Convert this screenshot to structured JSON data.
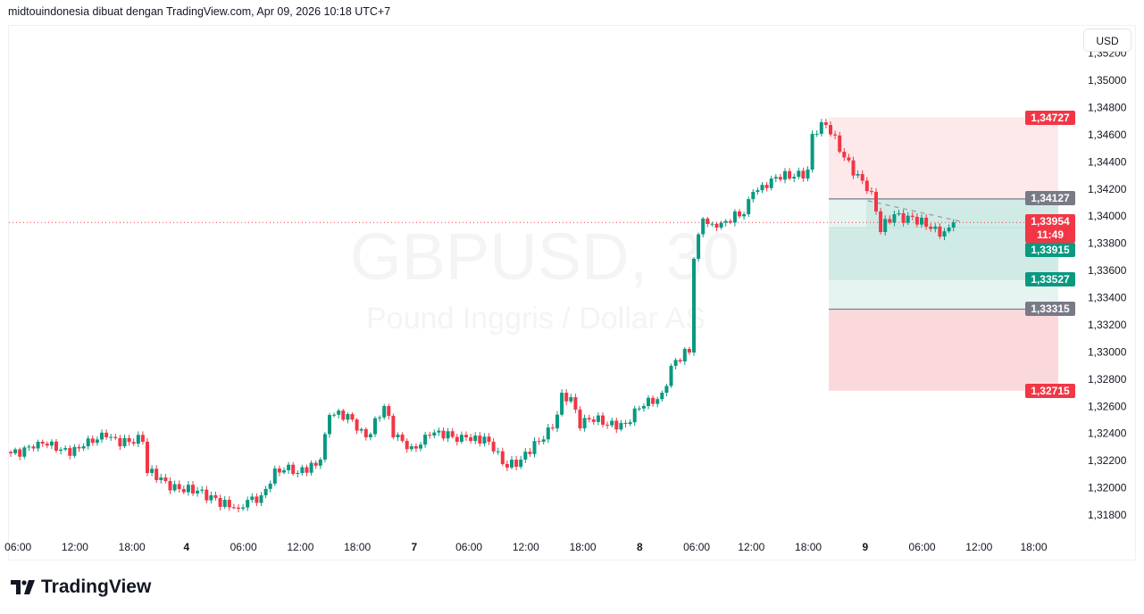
{
  "header": {
    "attribution": "midtouindonesia dibuat dengan TradingView.com, Apr 09, 2026 10:18 UTC+7"
  },
  "currency_button": "USD",
  "watermark": {
    "symbol": "GBPUSD, 30",
    "description": "Pound Inggris / Dollar AS"
  },
  "brand": "TradingView",
  "colors": {
    "up": "#089981",
    "down": "#f23645",
    "gray": "#787b86",
    "short_zone": "#fde8ea",
    "stop_zone": "#fbd8dc",
    "target_zone": "#d0ebe6",
    "light_green": "#e6f4f1"
  },
  "price_labels": {
    "top_stop": "1,34727",
    "entry_a": "1,34127",
    "last_price": "1,33954",
    "countdown": "11:49",
    "level_green_1": "1,33915",
    "level_green_2": "1,33527",
    "entry_b": "1,33315",
    "bottom_stop": "1,32715"
  },
  "chart_data": {
    "type": "candlestick",
    "title": "GBPUSD, 30",
    "ylim": [
      1.317,
      1.353
    ],
    "y_ticks": [
      "1,31800",
      "1,32000",
      "1,32200",
      "1,32400",
      "1,32600",
      "1,32800",
      "1,33000",
      "1,33200",
      "1,33400",
      "1,33600",
      "1,33800",
      "1,34000",
      "1,34200",
      "1,34400",
      "1,34600",
      "1,34800",
      "1,35000",
      "1,35200"
    ],
    "y_tick_values": [
      1.318,
      1.32,
      1.322,
      1.324,
      1.326,
      1.328,
      1.33,
      1.332,
      1.334,
      1.336,
      1.338,
      1.34,
      1.342,
      1.344,
      1.346,
      1.348,
      1.35,
      1.352
    ],
    "x_ticks": [
      "06:00",
      "12:00",
      "18:00",
      "4",
      "06:00",
      "12:00",
      "18:00",
      "7",
      "06:00",
      "12:00",
      "18:00",
      "8",
      "06:00",
      "12:00",
      "18:00",
      "9",
      "06:00",
      "12:00",
      "18:00"
    ],
    "x_tick_bars": [
      2,
      14.5,
      27,
      39,
      51.5,
      64,
      76.5,
      89,
      101,
      113.5,
      126,
      138.5,
      151,
      163,
      175.5,
      188,
      200.5,
      213,
      225
    ],
    "bar_count": 208,
    "close_anchors": {
      "bar": [
        0,
        6,
        10,
        16,
        21,
        29,
        30,
        33,
        37,
        45,
        50,
        55,
        58,
        63,
        68,
        70,
        75,
        78,
        82,
        84,
        88,
        92,
        100,
        105,
        108,
        112,
        116,
        119,
        121,
        123,
        125,
        127,
        135,
        139,
        143,
        145,
        149,
        150,
        152,
        155,
        161,
        163,
        167,
        171,
        175,
        176,
        178,
        179,
        182,
        186,
        189,
        191,
        194,
        198,
        204,
        206,
        207
      ],
      "close": [
        1.32254,
        1.32339,
        1.32273,
        1.32306,
        1.32372,
        1.32339,
        1.32109,
        1.32076,
        1.31991,
        1.31925,
        1.31846,
        1.31945,
        1.32142,
        1.32109,
        1.32208,
        1.32536,
        1.32503,
        1.32372,
        1.32602,
        1.32372,
        1.32306,
        1.32385,
        1.32372,
        1.32339,
        1.32175,
        1.32208,
        1.32339,
        1.32438,
        1.327,
        1.32667,
        1.32438,
        1.32503,
        1.3247,
        1.32602,
        1.327,
        1.32898,
        1.32996,
        1.33686,
        1.33982,
        1.33916,
        1.34014,
        1.34179,
        1.34277,
        1.34277,
        1.34343,
        1.34606,
        1.34691,
        1.34671,
        1.34474,
        1.3431,
        1.34179,
        1.33883,
        1.34014,
        1.33995,
        1.3385,
        1.33916,
        1.33954
      ]
    },
    "last_price": 1.33954,
    "position_levels": {
      "top_stop": 1.34727,
      "entry_a": 1.34127,
      "green_1": 1.33915,
      "green_2": 1.33527,
      "entry_b": 1.33315,
      "bottom_stop": 1.32715
    }
  }
}
